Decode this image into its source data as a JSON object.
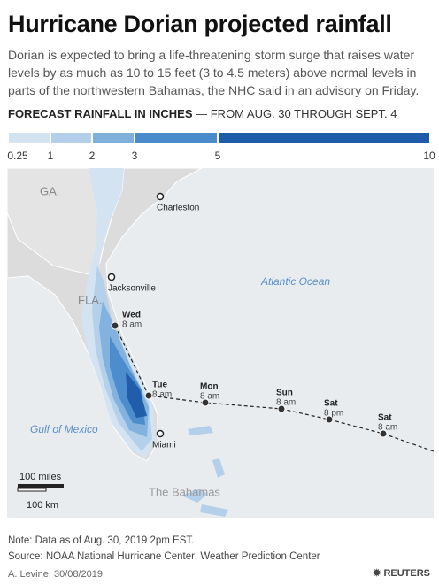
{
  "header": {
    "title": "Hurricane Dorian projected rainfall",
    "subtitle": "Dorian is expected to bring a life-threatening storm surge that raises water levels by as much as 10 to 15 feet (3 to 4.5 meters) above normal levels in parts of the northwestern Bahamas, the NHC said in an advisory on Friday."
  },
  "legend": {
    "title": "FORECAST RAINFALL IN INCHES",
    "subtitle": "— FROM AUG. 30 THROUGH SEPT. 4",
    "breaks": [
      0.25,
      1,
      2,
      3,
      5,
      10
    ],
    "colors": [
      "#d3e3f2",
      "#b3cfe9",
      "#7fb0dc",
      "#4a8bcb",
      "#1e5ba8"
    ]
  },
  "map": {
    "state_labels": [
      "GA.",
      "FLA."
    ],
    "ocean_labels": [
      "Atlantic Ocean",
      "Gulf of Mexico"
    ],
    "region_label": "The Bahamas",
    "cities": [
      "Charleston",
      "Jacksonville",
      "Miami"
    ],
    "track": [
      {
        "day": "Wed",
        "time": "8 am"
      },
      {
        "day": "Tue",
        "time": "8 am"
      },
      {
        "day": "Mon",
        "time": "8 am"
      },
      {
        "day": "Sun",
        "time": "8 am"
      },
      {
        "day": "Sat",
        "time": "8 pm"
      },
      {
        "day": "Sat",
        "time": "8 am"
      }
    ],
    "scale": {
      "miles": "100 miles",
      "km": "100 km"
    }
  },
  "footer": {
    "note": "Note: Data as of Aug. 30, 2019 2pm EST.",
    "source": "Source: NOAA National Hurricane Center; Weather Prediction Center",
    "credit": "A. Levine, 30/08/2019",
    "logo": "REUTERS"
  }
}
